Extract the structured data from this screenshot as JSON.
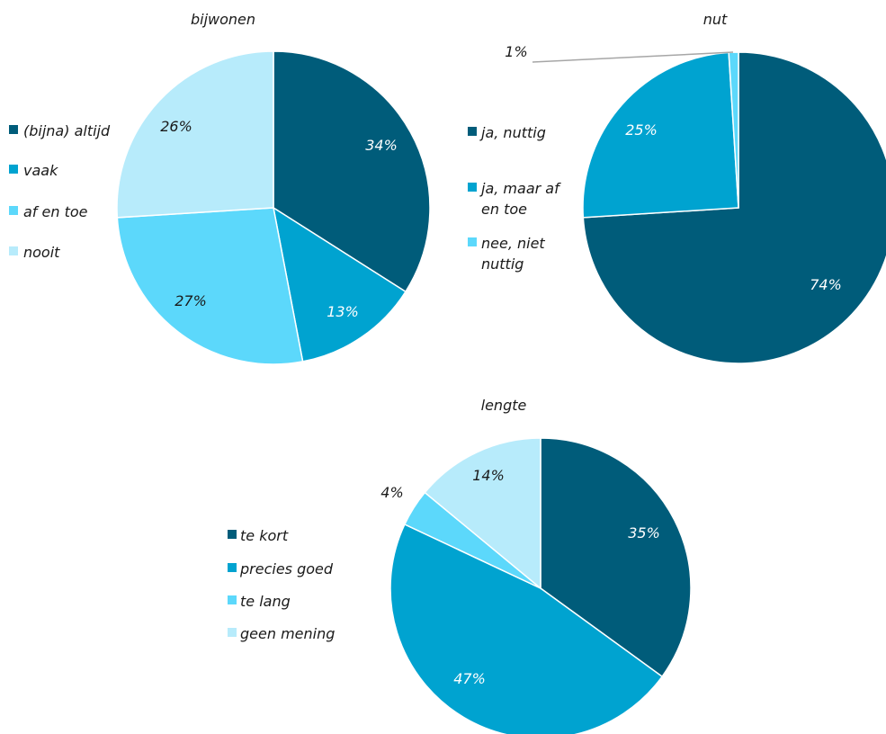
{
  "palette": {
    "dark": "#005c7a",
    "medium": "#00a3d0",
    "light": "#5cd8fb",
    "pale": "#b7ebfb",
    "leader": "#a6a6a6",
    "label_light": "#ffffff",
    "label_dark": "#1a1a1a"
  },
  "chart_data": [
    {
      "type": "pie",
      "title": "bijwonen",
      "categories": [
        "(bijna) altijd",
        "vaak",
        "af en toe",
        "nooit"
      ],
      "values": [
        34,
        13,
        27,
        26
      ],
      "data_labels": [
        "34%",
        "13%",
        "27%",
        "26%"
      ],
      "colors": [
        "#005c7a",
        "#00a3d0",
        "#5cd8fb",
        "#b7ebfb"
      ],
      "legend_placement": "left"
    },
    {
      "type": "pie",
      "title": "nut",
      "categories": [
        "ja, nuttig",
        "ja, maar af en toe",
        "nee, niet nuttig"
      ],
      "values": [
        74,
        25,
        1
      ],
      "data_labels": [
        "74%",
        "25%",
        "1%"
      ],
      "colors": [
        "#005c7a",
        "#00a3d0",
        "#5cd8fb"
      ],
      "legend_placement": "left"
    },
    {
      "type": "pie",
      "title": "lengte",
      "categories": [
        "te kort",
        "precies goed",
        "te lang",
        "geen mening"
      ],
      "values": [
        35,
        47,
        4,
        14
      ],
      "data_labels": [
        "35%",
        "47%",
        "4%",
        "14%"
      ],
      "colors": [
        "#005c7a",
        "#00a3d0",
        "#5cd8fb",
        "#b7ebfb"
      ],
      "legend_placement": "left"
    }
  ]
}
